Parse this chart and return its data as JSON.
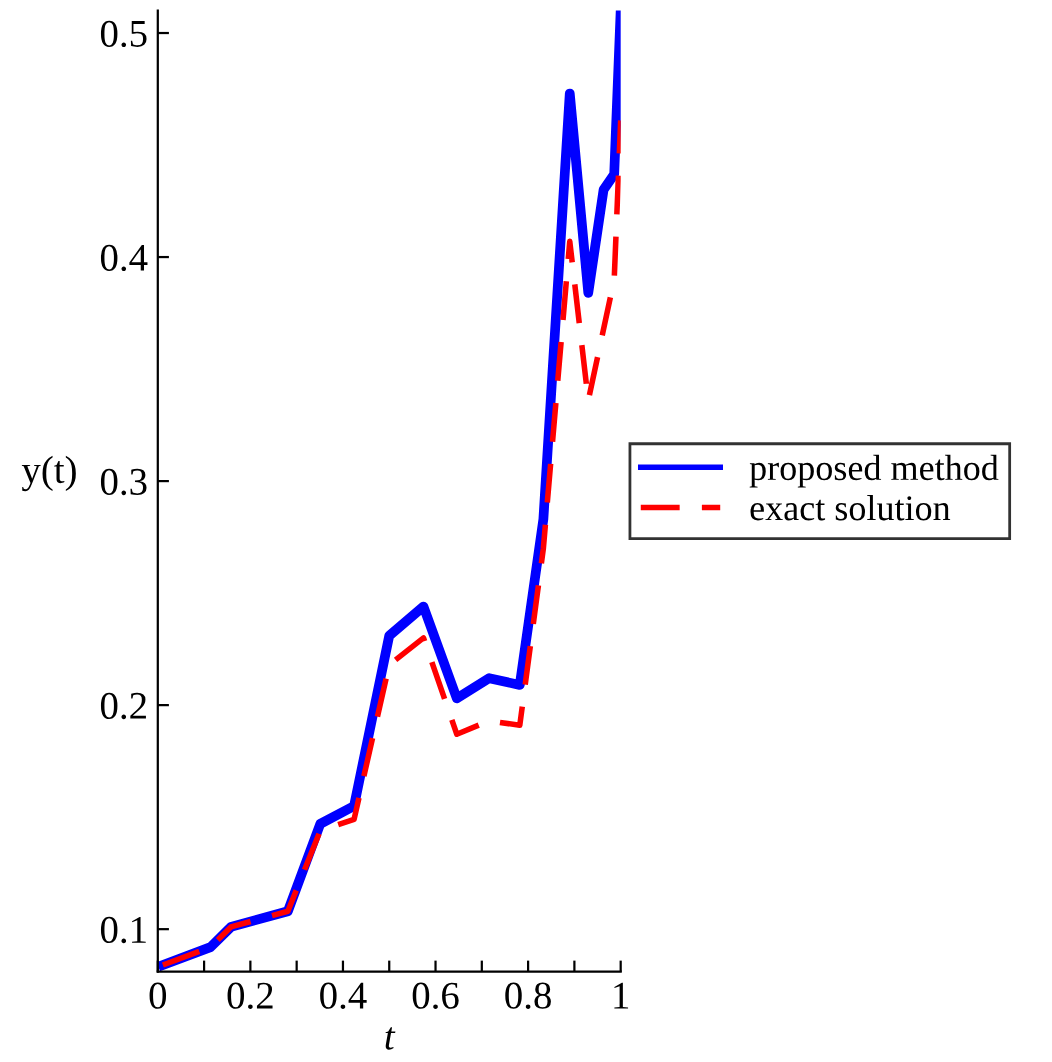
{
  "chart_data": {
    "type": "line",
    "xlabel": "t",
    "ylabel": "y(t)",
    "xlim": [
      0,
      1
    ],
    "ylim": [
      0.081,
      0.51
    ],
    "xticks": [
      0,
      {
        "value": 0.1,
        "label": null
      },
      {
        "value": 0.2,
        "label": "0.2"
      },
      {
        "value": 0.3,
        "label": null
      },
      {
        "value": 0.4,
        "label": "0.4"
      },
      {
        "value": 0.5,
        "label": null
      },
      {
        "value": 0.6,
        "label": "0.6"
      },
      {
        "value": 0.7,
        "label": null
      },
      {
        "value": 0.8,
        "label": "0.8"
      },
      {
        "value": 0.9,
        "label": null
      },
      1
    ],
    "yticks": [
      0.1,
      0.2,
      0.3,
      0.4,
      0.5
    ],
    "legend": "right",
    "grid": false,
    "series": [
      {
        "name": "proposed method",
        "color": "#0000ff",
        "line_style": "solid",
        "x": [
          0.011,
          0.114,
          0.158,
          0.281,
          0.351,
          0.424,
          0.5,
          0.574,
          0.646,
          0.716,
          0.782,
          0.833,
          0.89,
          0.93,
          0.963,
          0.986,
          1.0
        ],
        "values": [
          0.084,
          0.092,
          0.101,
          0.108,
          0.147,
          0.155,
          0.231,
          0.244,
          0.203,
          0.212,
          0.209,
          0.283,
          0.473,
          0.384,
          0.43,
          0.437,
          0.51
        ]
      },
      {
        "name": "exact solution",
        "color": "#ff0000",
        "line_style": "dashed",
        "x": [
          0.011,
          0.114,
          0.158,
          0.281,
          0.351,
          0.424,
          0.5,
          0.574,
          0.646,
          0.716,
          0.782,
          0.833,
          0.89,
          0.93,
          0.986,
          1.0
        ],
        "values": [
          0.084,
          0.092,
          0.101,
          0.108,
          0.144,
          0.149,
          0.218,
          0.23,
          0.187,
          0.193,
          0.191,
          0.27,
          0.407,
          0.336,
          0.39,
          0.461
        ]
      }
    ]
  }
}
